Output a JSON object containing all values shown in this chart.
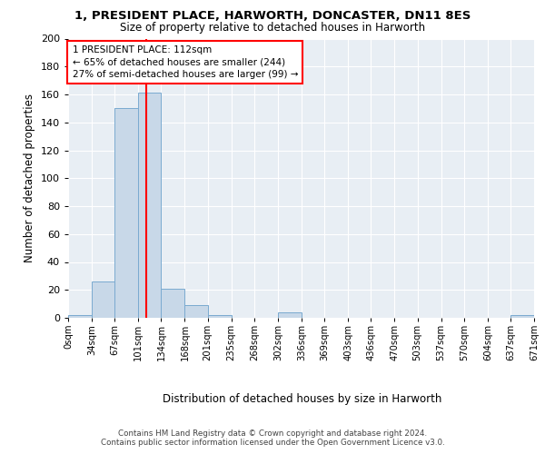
{
  "title_line1": "1, PRESIDENT PLACE, HARWORTH, DONCASTER, DN11 8ES",
  "title_line2": "Size of property relative to detached houses in Harworth",
  "xlabel": "Distribution of detached houses by size in Harworth",
  "ylabel": "Number of detached properties",
  "bin_labels": [
    "0sqm",
    "34sqm",
    "67sqm",
    "101sqm",
    "134sqm",
    "168sqm",
    "201sqm",
    "235sqm",
    "268sqm",
    "302sqm",
    "336sqm",
    "369sqm",
    "403sqm",
    "436sqm",
    "470sqm",
    "503sqm",
    "537sqm",
    "570sqm",
    "604sqm",
    "637sqm",
    "671sqm"
  ],
  "bin_edges": [
    0,
    34,
    67,
    101,
    134,
    168,
    201,
    235,
    268,
    302,
    336,
    369,
    403,
    436,
    470,
    503,
    537,
    570,
    604,
    637,
    671
  ],
  "bar_heights": [
    2,
    26,
    150,
    161,
    21,
    9,
    2,
    0,
    0,
    4,
    0,
    0,
    0,
    0,
    0,
    0,
    0,
    0,
    0,
    2,
    0
  ],
  "bar_color": "#c8d8e8",
  "bar_edge_color": "#7aaad0",
  "property_size": 112,
  "property_line_color": "red",
  "annotation_line1": "1 PRESIDENT PLACE: 112sqm",
  "annotation_line2": "← 65% of detached houses are smaller (244)",
  "annotation_line3": "27% of semi-detached houses are larger (99) →",
  "annotation_box_color": "white",
  "annotation_box_edge_color": "red",
  "ylim": [
    0,
    200
  ],
  "yticks": [
    0,
    20,
    40,
    60,
    80,
    100,
    120,
    140,
    160,
    180,
    200
  ],
  "xlim_max": 671,
  "background_color": "#e8eef4",
  "grid_color": "white",
  "footer_line1": "Contains HM Land Registry data © Crown copyright and database right 2024.",
  "footer_line2": "Contains public sector information licensed under the Open Government Licence v3.0."
}
